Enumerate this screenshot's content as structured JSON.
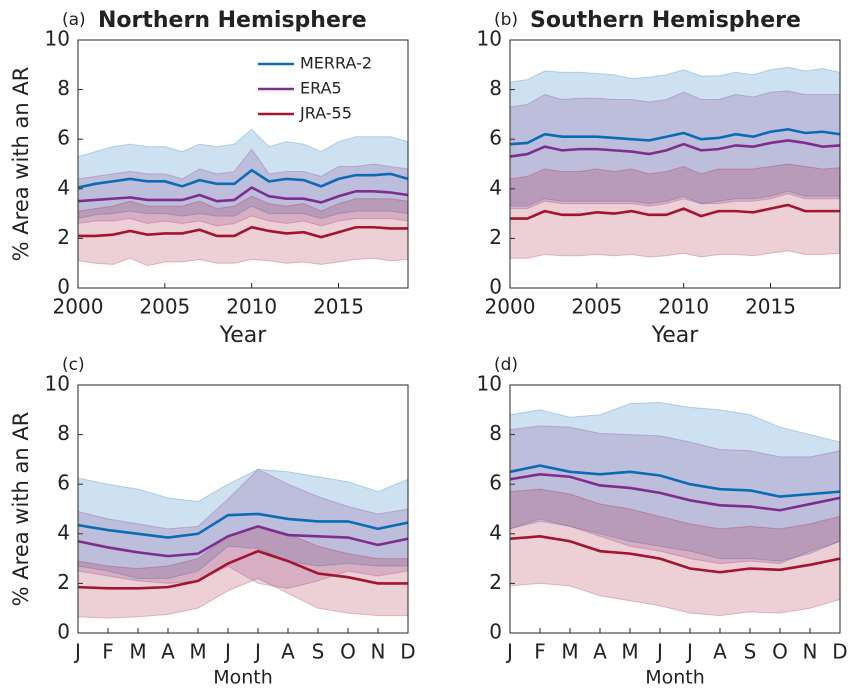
{
  "chart_data": [
    {
      "type": "line",
      "panel_label": "(a)",
      "title": "Northern Hemisphere",
      "xlabel": "Year",
      "ylabel": "% Area with an AR",
      "x": [
        2000,
        2001,
        2002,
        2003,
        2004,
        2005,
        2006,
        2007,
        2008,
        2009,
        2010,
        2011,
        2012,
        2013,
        2014,
        2015,
        2016,
        2017,
        2018,
        2019
      ],
      "xlim": [
        2000,
        2019
      ],
      "xticks": [
        2000,
        2005,
        2010,
        2015
      ],
      "ylim": [
        0,
        10
      ],
      "yticks": [
        0,
        2,
        4,
        6,
        8,
        10
      ],
      "legend": "upper right",
      "series": [
        {
          "name": "MERRA-2",
          "color": "#0b6bb5",
          "values": [
            4.05,
            4.2,
            4.3,
            4.4,
            4.3,
            4.3,
            4.1,
            4.35,
            4.2,
            4.2,
            4.75,
            4.3,
            4.4,
            4.35,
            4.1,
            4.4,
            4.55,
            4.55,
            4.6,
            4.4
          ],
          "upper": [
            5.3,
            5.5,
            5.7,
            5.8,
            5.7,
            5.7,
            5.5,
            5.8,
            5.7,
            5.8,
            6.4,
            5.7,
            5.9,
            5.8,
            5.5,
            5.9,
            6.1,
            6.1,
            6.1,
            5.9
          ],
          "lower": [
            2.8,
            2.95,
            3.0,
            3.1,
            3.0,
            3.0,
            2.9,
            3.0,
            2.9,
            2.9,
            3.3,
            3.0,
            3.0,
            3.0,
            2.8,
            3.0,
            3.1,
            3.1,
            3.1,
            3.0
          ]
        },
        {
          "name": "ERA5",
          "color": "#7e2f8e",
          "values": [
            3.5,
            3.55,
            3.6,
            3.65,
            3.55,
            3.55,
            3.55,
            3.75,
            3.5,
            3.55,
            4.05,
            3.7,
            3.6,
            3.6,
            3.45,
            3.7,
            3.9,
            3.9,
            3.85,
            3.75
          ],
          "upper": [
            4.4,
            4.5,
            4.6,
            4.7,
            4.6,
            4.6,
            4.4,
            4.8,
            4.6,
            4.7,
            5.6,
            4.6,
            4.7,
            4.7,
            4.5,
            4.9,
            4.9,
            5.0,
            4.9,
            4.8
          ],
          "lower": [
            2.6,
            2.7,
            2.7,
            2.8,
            2.6,
            2.7,
            2.6,
            2.7,
            2.5,
            2.6,
            2.9,
            2.7,
            2.6,
            2.7,
            2.5,
            2.7,
            2.8,
            2.8,
            2.8,
            2.7
          ]
        },
        {
          "name": "JRA-55",
          "color": "#a2142f",
          "values": [
            2.1,
            2.1,
            2.15,
            2.3,
            2.15,
            2.2,
            2.2,
            2.35,
            2.1,
            2.1,
            2.45,
            2.3,
            2.2,
            2.25,
            2.05,
            2.25,
            2.45,
            2.45,
            2.4,
            2.4
          ],
          "upper": [
            3.1,
            3.2,
            3.3,
            3.5,
            3.3,
            3.3,
            3.3,
            3.5,
            3.2,
            3.3,
            3.7,
            3.4,
            3.3,
            3.4,
            3.1,
            3.4,
            3.6,
            3.6,
            3.6,
            3.5
          ],
          "lower": [
            1.1,
            1.0,
            0.95,
            1.2,
            0.9,
            1.05,
            1.05,
            1.15,
            1.0,
            1.0,
            1.15,
            1.1,
            1.0,
            1.05,
            0.95,
            1.05,
            1.15,
            1.2,
            1.1,
            1.15
          ]
        }
      ]
    },
    {
      "type": "line",
      "panel_label": "(b)",
      "title": "Southern Hemisphere",
      "xlabel": "Year",
      "x": [
        2000,
        2001,
        2002,
        2003,
        2004,
        2005,
        2006,
        2007,
        2008,
        2009,
        2010,
        2011,
        2012,
        2013,
        2014,
        2015,
        2016,
        2017,
        2018,
        2019
      ],
      "xlim": [
        2000,
        2019
      ],
      "xticks": [
        2000,
        2005,
        2010,
        2015
      ],
      "ylim": [
        0,
        10
      ],
      "yticks": [
        0,
        2,
        4,
        6,
        8,
        10
      ],
      "series": [
        {
          "color": "#0b6bb5",
          "values": [
            5.8,
            5.85,
            6.2,
            6.1,
            6.1,
            6.1,
            6.05,
            6.0,
            5.95,
            6.1,
            6.25,
            6.0,
            6.05,
            6.2,
            6.1,
            6.3,
            6.4,
            6.25,
            6.3,
            6.2
          ],
          "upper": [
            8.3,
            8.4,
            8.75,
            8.7,
            8.7,
            8.65,
            8.6,
            8.45,
            8.5,
            8.6,
            8.8,
            8.55,
            8.55,
            8.7,
            8.6,
            8.8,
            8.9,
            8.75,
            8.85,
            8.7
          ],
          "lower": [
            3.3,
            3.3,
            3.6,
            3.5,
            3.5,
            3.5,
            3.5,
            3.5,
            3.4,
            3.5,
            3.7,
            3.4,
            3.5,
            3.6,
            3.6,
            3.7,
            3.9,
            3.7,
            3.7,
            3.7
          ]
        },
        {
          "color": "#7e2f8e",
          "values": [
            5.3,
            5.4,
            5.7,
            5.55,
            5.6,
            5.6,
            5.55,
            5.5,
            5.4,
            5.55,
            5.8,
            5.55,
            5.6,
            5.75,
            5.7,
            5.85,
            5.95,
            5.85,
            5.7,
            5.75
          ],
          "upper": [
            7.3,
            7.4,
            7.8,
            7.6,
            7.65,
            7.65,
            7.6,
            7.6,
            7.5,
            7.6,
            7.9,
            7.6,
            7.6,
            7.8,
            7.7,
            7.9,
            7.95,
            7.8,
            7.8,
            7.8
          ],
          "lower": [
            3.2,
            3.2,
            3.5,
            3.4,
            3.4,
            3.4,
            3.4,
            3.4,
            3.3,
            3.4,
            3.6,
            3.4,
            3.4,
            3.5,
            3.5,
            3.6,
            3.8,
            3.6,
            3.6,
            3.6
          ]
        },
        {
          "color": "#a2142f",
          "values": [
            2.8,
            2.8,
            3.1,
            2.95,
            2.95,
            3.05,
            3.0,
            3.1,
            2.95,
            2.95,
            3.2,
            2.9,
            3.1,
            3.1,
            3.05,
            3.2,
            3.35,
            3.1,
            3.1,
            3.1
          ],
          "upper": [
            4.4,
            4.5,
            4.8,
            4.7,
            4.7,
            4.8,
            4.7,
            4.8,
            4.6,
            4.7,
            4.9,
            4.6,
            4.8,
            4.8,
            4.8,
            4.9,
            5.0,
            4.9,
            4.8,
            4.85
          ],
          "lower": [
            1.2,
            1.2,
            1.35,
            1.3,
            1.3,
            1.35,
            1.3,
            1.35,
            1.25,
            1.3,
            1.4,
            1.25,
            1.35,
            1.35,
            1.3,
            1.4,
            1.5,
            1.35,
            1.35,
            1.4
          ]
        }
      ]
    },
    {
      "type": "line",
      "panel_label": "(c)",
      "xlabel": "Month",
      "ylabel": "% Area with an AR",
      "categories": [
        "J",
        "F",
        "M",
        "A",
        "M",
        "J",
        "J",
        "A",
        "S",
        "O",
        "N",
        "D"
      ],
      "ylim": [
        0,
        10
      ],
      "yticks": [
        0,
        2,
        4,
        6,
        8,
        10
      ],
      "series": [
        {
          "color": "#0b6bb5",
          "values": [
            4.35,
            4.15,
            4.0,
            3.85,
            4.0,
            4.75,
            4.8,
            4.6,
            4.5,
            4.5,
            4.2,
            4.45
          ],
          "upper": [
            6.25,
            6.0,
            5.8,
            5.45,
            5.3,
            6.0,
            6.6,
            6.5,
            6.3,
            6.1,
            5.7,
            6.2
          ],
          "lower": [
            2.7,
            2.5,
            2.2,
            2.2,
            2.5,
            3.5,
            3.4,
            2.9,
            2.7,
            2.8,
            2.7,
            2.7
          ]
        },
        {
          "color": "#7e2f8e",
          "values": [
            3.7,
            3.45,
            3.25,
            3.1,
            3.2,
            3.9,
            4.3,
            3.95,
            3.9,
            3.85,
            3.55,
            3.8
          ],
          "upper": [
            4.9,
            4.6,
            4.4,
            4.2,
            4.3,
            5.4,
            6.6,
            6.0,
            5.5,
            5.1,
            4.8,
            5.0
          ],
          "lower": [
            2.5,
            2.3,
            2.1,
            2.0,
            2.1,
            2.7,
            2.0,
            1.8,
            2.1,
            2.5,
            2.3,
            2.5
          ]
        },
        {
          "color": "#a2142f",
          "values": [
            1.85,
            1.8,
            1.8,
            1.85,
            2.1,
            2.8,
            3.3,
            2.9,
            2.4,
            2.25,
            2.0,
            2.0
          ],
          "upper": [
            2.9,
            2.7,
            2.6,
            2.7,
            3.0,
            3.9,
            4.3,
            4.0,
            3.5,
            3.2,
            3.0,
            3.0
          ],
          "lower": [
            0.65,
            0.6,
            0.65,
            0.75,
            1.0,
            1.7,
            2.2,
            1.6,
            1.0,
            0.8,
            0.7,
            0.7
          ]
        }
      ]
    },
    {
      "type": "line",
      "panel_label": "(d)",
      "xlabel": "Month",
      "categories": [
        "J",
        "F",
        "M",
        "A",
        "M",
        "J",
        "J",
        "A",
        "S",
        "O",
        "N",
        "D"
      ],
      "ylim": [
        0,
        10
      ],
      "yticks": [
        0,
        2,
        4,
        6,
        8,
        10
      ],
      "series": [
        {
          "color": "#0b6bb5",
          "values": [
            6.5,
            6.75,
            6.5,
            6.4,
            6.5,
            6.35,
            6.0,
            5.8,
            5.75,
            5.5,
            5.6,
            5.7
          ],
          "upper": [
            8.8,
            9.0,
            8.7,
            8.8,
            9.25,
            9.3,
            9.1,
            9.0,
            8.8,
            8.3,
            8.0,
            7.7
          ],
          "lower": [
            4.2,
            4.5,
            4.3,
            4.0,
            3.7,
            3.5,
            3.3,
            3.0,
            3.0,
            2.9,
            3.2,
            3.7
          ]
        },
        {
          "color": "#7e2f8e",
          "values": [
            6.2,
            6.4,
            6.3,
            5.95,
            5.85,
            5.65,
            5.35,
            5.15,
            5.1,
            4.95,
            5.2,
            5.45
          ],
          "upper": [
            8.2,
            8.35,
            8.3,
            8.05,
            8.0,
            7.95,
            7.7,
            7.4,
            7.35,
            7.1,
            7.1,
            7.35
          ],
          "lower": [
            4.2,
            4.6,
            4.3,
            3.9,
            3.5,
            3.3,
            3.0,
            2.8,
            2.9,
            2.8,
            3.3,
            3.7
          ]
        },
        {
          "color": "#a2142f",
          "values": [
            3.8,
            3.9,
            3.7,
            3.3,
            3.2,
            3.0,
            2.6,
            2.45,
            2.6,
            2.55,
            2.75,
            3.0
          ],
          "upper": [
            5.7,
            5.8,
            5.6,
            5.2,
            5.0,
            4.7,
            4.4,
            4.2,
            4.3,
            4.2,
            4.4,
            4.7
          ],
          "lower": [
            1.9,
            2.0,
            1.9,
            1.5,
            1.3,
            1.1,
            0.8,
            0.7,
            0.85,
            0.8,
            1.0,
            1.35
          ]
        }
      ]
    }
  ]
}
